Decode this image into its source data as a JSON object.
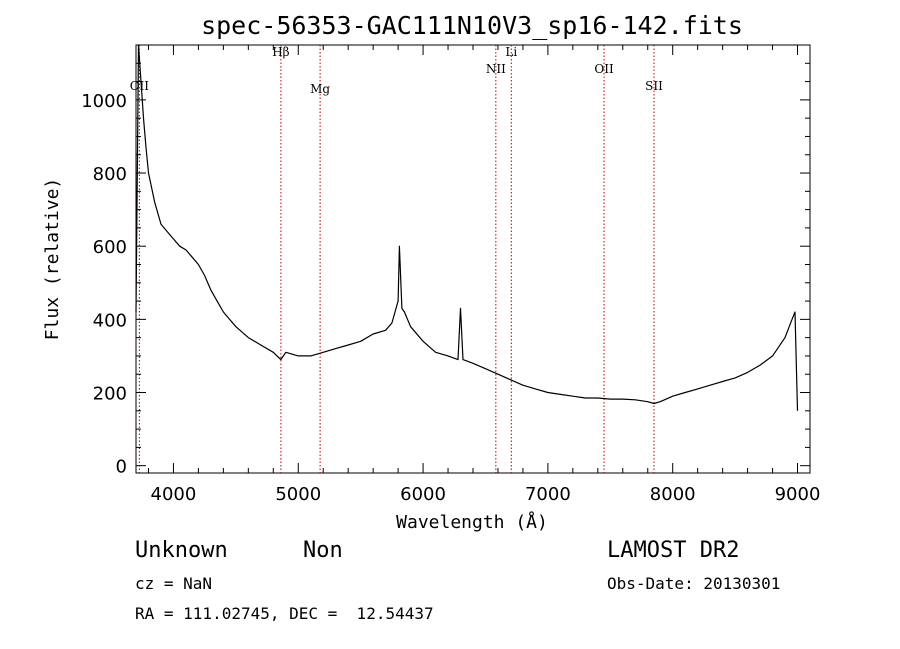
{
  "chart_data": {
    "type": "line",
    "title": "spec-56353-GAC111N10V3_sp16-142.fits",
    "xlabel": "Wavelength (Å)",
    "ylabel": "Flux (relative)",
    "xlim": [
      3700,
      9100
    ],
    "ylim": [
      -20,
      1150
    ],
    "xticks": [
      4000,
      5000,
      6000,
      7000,
      8000,
      9000
    ],
    "yticks": [
      0,
      200,
      400,
      600,
      800,
      1000
    ],
    "x_tick_labels": [
      "4000",
      "5000",
      "6000",
      "7000",
      "8000",
      "9000"
    ],
    "y_tick_labels": [
      "0",
      "200",
      "400",
      "600",
      "800",
      "1000"
    ],
    "lines": [
      {
        "name": "OII",
        "x": 3727
      },
      {
        "name": "Hβ",
        "x": 4861
      },
      {
        "name": "Mg",
        "x": 5175
      },
      {
        "name": "NII",
        "x": 6583
      },
      {
        "name": "Li",
        "x": 6707
      },
      {
        "name": "OII",
        "x": 7450
      },
      {
        "name": "SII",
        "x": 7850
      }
    ],
    "series": [
      {
        "x": [
          3700,
          3720,
          3740,
          3760,
          3780,
          3800,
          3850,
          3900,
          3950,
          4000,
          4050,
          4100,
          4150,
          4200,
          4250,
          4300,
          4350,
          4400,
          4450,
          4500,
          4600,
          4700,
          4800,
          4860,
          4900,
          5000,
          5100,
          5200,
          5300,
          5400,
          5500,
          5600,
          5700,
          5750,
          5800,
          5810,
          5830,
          5850,
          5900,
          6000,
          6100,
          6200,
          6280,
          6300,
          6320,
          6400,
          6500,
          6600,
          6700,
          6800,
          6900,
          7000,
          7100,
          7200,
          7300,
          7400,
          7500,
          7600,
          7700,
          7800,
          7850,
          7900,
          8000,
          8100,
          8200,
          8300,
          8400,
          8500,
          8600,
          8700,
          8800,
          8900,
          8950,
          8980,
          9000
        ],
        "y": [
          420,
          1150,
          1050,
          950,
          870,
          800,
          720,
          660,
          640,
          620,
          600,
          590,
          570,
          550,
          520,
          480,
          450,
          420,
          400,
          380,
          350,
          330,
          310,
          290,
          310,
          300,
          300,
          310,
          320,
          330,
          340,
          360,
          370,
          390,
          450,
          600,
          430,
          420,
          380,
          340,
          310,
          300,
          290,
          430,
          290,
          280,
          265,
          250,
          235,
          220,
          210,
          200,
          195,
          190,
          185,
          185,
          182,
          182,
          180,
          175,
          170,
          175,
          190,
          200,
          210,
          220,
          230,
          240,
          255,
          275,
          300,
          350,
          395,
          420,
          150
        ]
      }
    ]
  },
  "info": {
    "object_class": "Unknown",
    "subclass": "Non",
    "survey": "LAMOST DR2",
    "cz": "cz = NaN",
    "obs_date": "Obs-Date: 20130301",
    "coords": "RA = 111.02745, DEC =  12.54437"
  }
}
